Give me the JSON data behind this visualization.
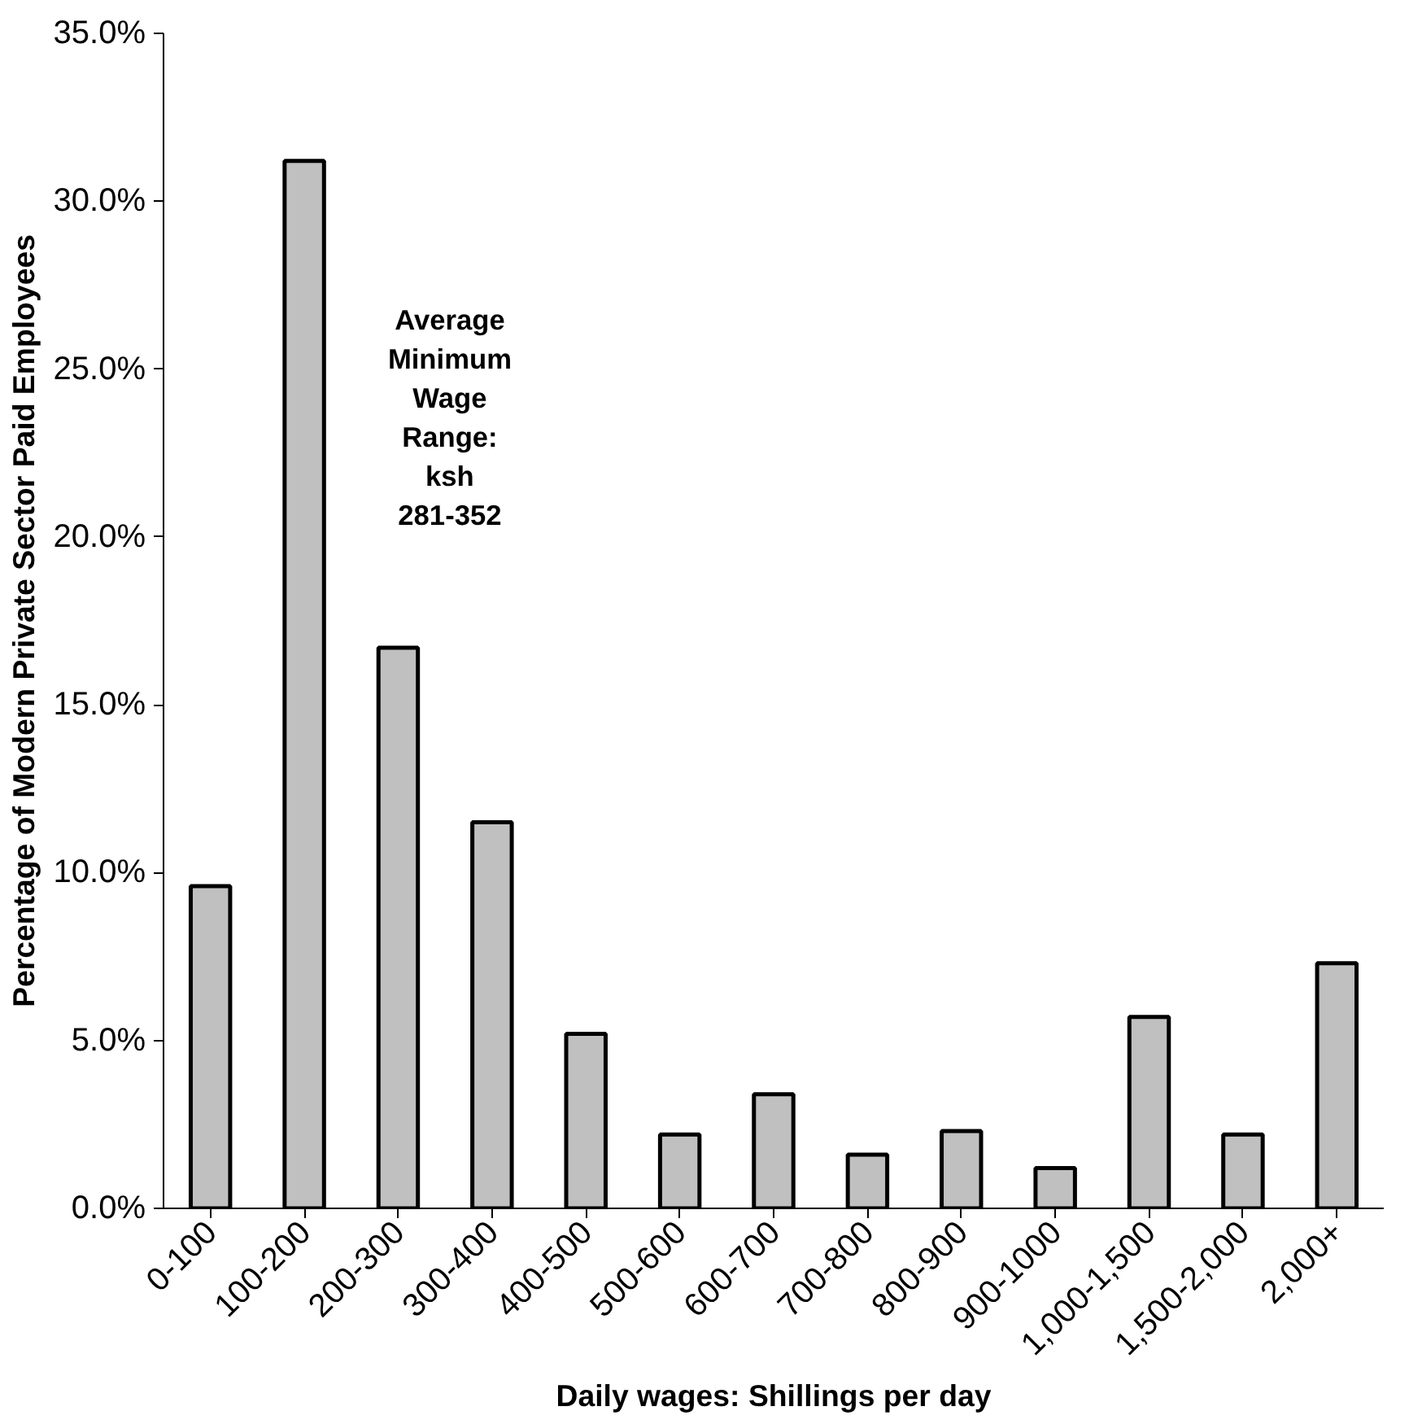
{
  "chart_data": {
    "type": "bar",
    "xlabel": "Daily wages: Shillings per day",
    "ylabel": "Percentage of Modern Private Sector Paid Employees",
    "categories": [
      "0-100",
      "100-200",
      "200-300",
      "300-400",
      "400-500",
      "500-600",
      "600-700",
      "700-800",
      "800-900",
      "900-1000",
      "1,000-1,500",
      "1,500-2,000",
      "2,000+"
    ],
    "values": [
      9.6,
      31.2,
      16.7,
      11.5,
      5.2,
      2.2,
      3.4,
      1.6,
      2.3,
      1.2,
      5.7,
      2.2,
      7.3
    ],
    "color": "#c0c0c0",
    "ylim": [
      0,
      35
    ],
    "yticks": [
      {
        "value": 0,
        "label": "0.0%"
      },
      {
        "value": 5,
        "label": "5.0%"
      },
      {
        "value": 10,
        "label": "10.0%"
      },
      {
        "value": 15,
        "label": "15.0%"
      },
      {
        "value": 20,
        "label": "20.0%"
      },
      {
        "value": 25,
        "label": "25.0%"
      },
      {
        "value": 30,
        "label": "30.0%"
      },
      {
        "value": 35,
        "label": "35.0%"
      }
    ],
    "grid": false,
    "annotations": [
      "Average Minimum Wage Range: ksh 281-352"
    ]
  }
}
